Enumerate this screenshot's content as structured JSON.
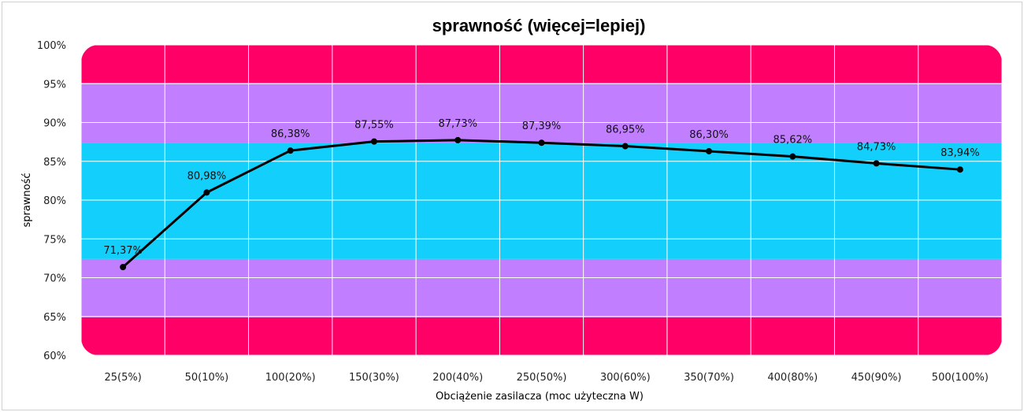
{
  "chart_data": {
    "type": "line",
    "title": "sprawność (więcej=lepiej)",
    "xlabel": "Obciążenie zasilacza (moc użyteczna W)",
    "ylabel": "sprawność",
    "categories": [
      "25(5%)",
      "50(10%)",
      "100(20%)",
      "150(30%)",
      "200(40%)",
      "250(50%)",
      "300(60%)",
      "350(70%)",
      "400(80%)",
      "450(90%)",
      "500(100%)"
    ],
    "values": [
      71.37,
      80.98,
      86.38,
      87.55,
      87.73,
      87.39,
      86.95,
      86.3,
      85.62,
      84.73,
      83.94
    ],
    "data_labels": [
      "71,37%",
      "80,98%",
      "86,38%",
      "87,55%",
      "87,73%",
      "87,39%",
      "86,95%",
      "86,30%",
      "85,62%",
      "84,73%",
      "83,94%"
    ],
    "ylim": [
      60,
      100
    ],
    "yticks": [
      60,
      65,
      70,
      75,
      80,
      85,
      90,
      95,
      100
    ],
    "ytick_labels": [
      "60%",
      "65%",
      "70%",
      "75%",
      "80%",
      "85%",
      "90%",
      "95%",
      "100%"
    ],
    "grid": true,
    "legend": "none",
    "bands": [
      {
        "from": 60,
        "to": 64.9,
        "color": "#ff0066"
      },
      {
        "from": 64.9,
        "to": 72.4,
        "color": "#c17fff"
      },
      {
        "from": 72.4,
        "to": 87.4,
        "color": "#12d0fb"
      },
      {
        "from": 87.4,
        "to": 95.1,
        "color": "#c17fff"
      },
      {
        "from": 95.1,
        "to": 100,
        "color": "#ff0066"
      }
    ],
    "line_color": "#000000"
  }
}
